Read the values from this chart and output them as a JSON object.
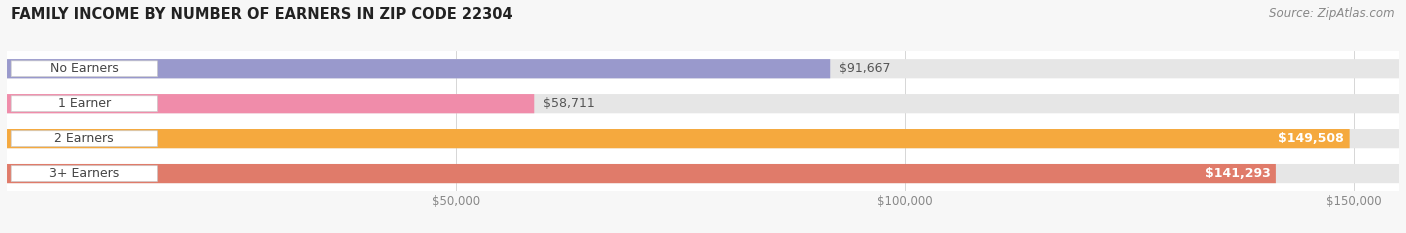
{
  "title": "FAMILY INCOME BY NUMBER OF EARNERS IN ZIP CODE 22304",
  "source": "Source: ZipAtlas.com",
  "categories": [
    "No Earners",
    "1 Earner",
    "2 Earners",
    "3+ Earners"
  ],
  "values": [
    91667,
    58711,
    149508,
    141293
  ],
  "bar_colors": [
    "#9999cc",
    "#f08caa",
    "#f5a93e",
    "#e07b6a"
  ],
  "bar_bg_color": "#e4e4e4",
  "value_labels": [
    "$91,667",
    "$58,711",
    "$149,508",
    "$141,293"
  ],
  "value_inside": [
    false,
    false,
    true,
    true
  ],
  "xlim_data": [
    0,
    155000
  ],
  "xticks": [
    50000,
    100000,
    150000
  ],
  "xtick_labels": [
    "$50,000",
    "$100,000",
    "$150,000"
  ],
  "title_fontsize": 10.5,
  "label_fontsize": 9,
  "tick_fontsize": 8.5,
  "source_fontsize": 8.5,
  "background_color": "#f7f7f7",
  "bar_bg_track_color": "#e6e6e6",
  "bar_gap_color": "#ffffff"
}
